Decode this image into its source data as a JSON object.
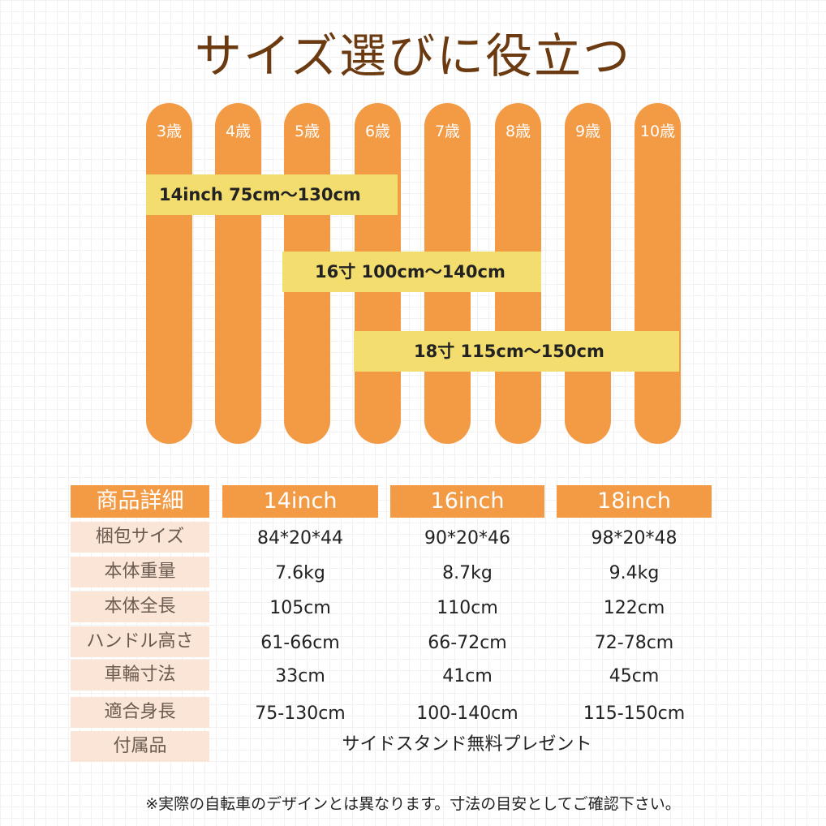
{
  "title": "サイズ選びに役立つ",
  "colors": {
    "bar": "#f39a45",
    "band": "#f2dd6e",
    "label_bg": "#fbe5d6",
    "title": "#6b3a10"
  },
  "ages": [
    "3歳",
    "4歳",
    "5歳",
    "6歳",
    "7歳",
    "8歳",
    "9歳",
    "10歳"
  ],
  "bands": [
    "14inch 75cm〜130cm",
    "16寸 100cm〜140cm",
    "18寸 115cm〜150cm"
  ],
  "table": {
    "header": [
      "商品詳細",
      "14inch",
      "16inch",
      "18inch"
    ],
    "rows": [
      {
        "label": "梱包サイズ",
        "values": [
          "84*20*44",
          "90*20*46",
          "98*20*48"
        ]
      },
      {
        "label": "本体重量",
        "values": [
          "7.6kg",
          "8.7kg",
          "9.4kg"
        ]
      },
      {
        "label": "本体全長",
        "values": [
          "105cm",
          "110cm",
          "122cm"
        ]
      },
      {
        "label": "ハンドル高さ",
        "values": [
          "61-66cm",
          "66-72cm",
          "72-78cm"
        ]
      },
      {
        "label": "車輪寸法",
        "values": [
          "33cm",
          "41cm",
          "45cm"
        ]
      },
      {
        "label": "適合身長",
        "values": [
          "75-130cm",
          "100-140cm",
          "115-150cm"
        ]
      }
    ],
    "accessory": {
      "label": "付属品",
      "value": "サイドスタンド無料プレゼント"
    }
  },
  "footnote": "※実際の自転車のデザインとは異なります。寸法の目安としてご確認下さい。"
}
